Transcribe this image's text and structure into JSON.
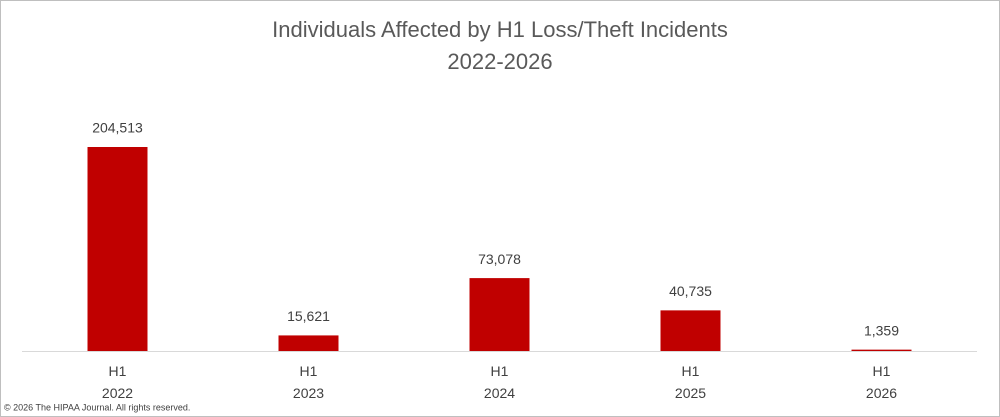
{
  "chart_data": {
    "type": "bar",
    "title": "Individuals Affected by H1 Loss/Theft Incidents",
    "subtitle": "2022-2026",
    "categories": [
      [
        "H1",
        "2022"
      ],
      [
        "H1",
        "2023"
      ],
      [
        "H1",
        "2024"
      ],
      [
        "H1",
        "2025"
      ],
      [
        "H1",
        "2026"
      ]
    ],
    "values": [
      204513,
      15621,
      73078,
      40735,
      1359
    ],
    "value_labels": [
      "204,513",
      "15,621",
      "73,078",
      "40,735",
      "1,359"
    ],
    "color": "#c00000",
    "footnote": "© 2026 The HIPAA Journal. All rights reserved."
  }
}
